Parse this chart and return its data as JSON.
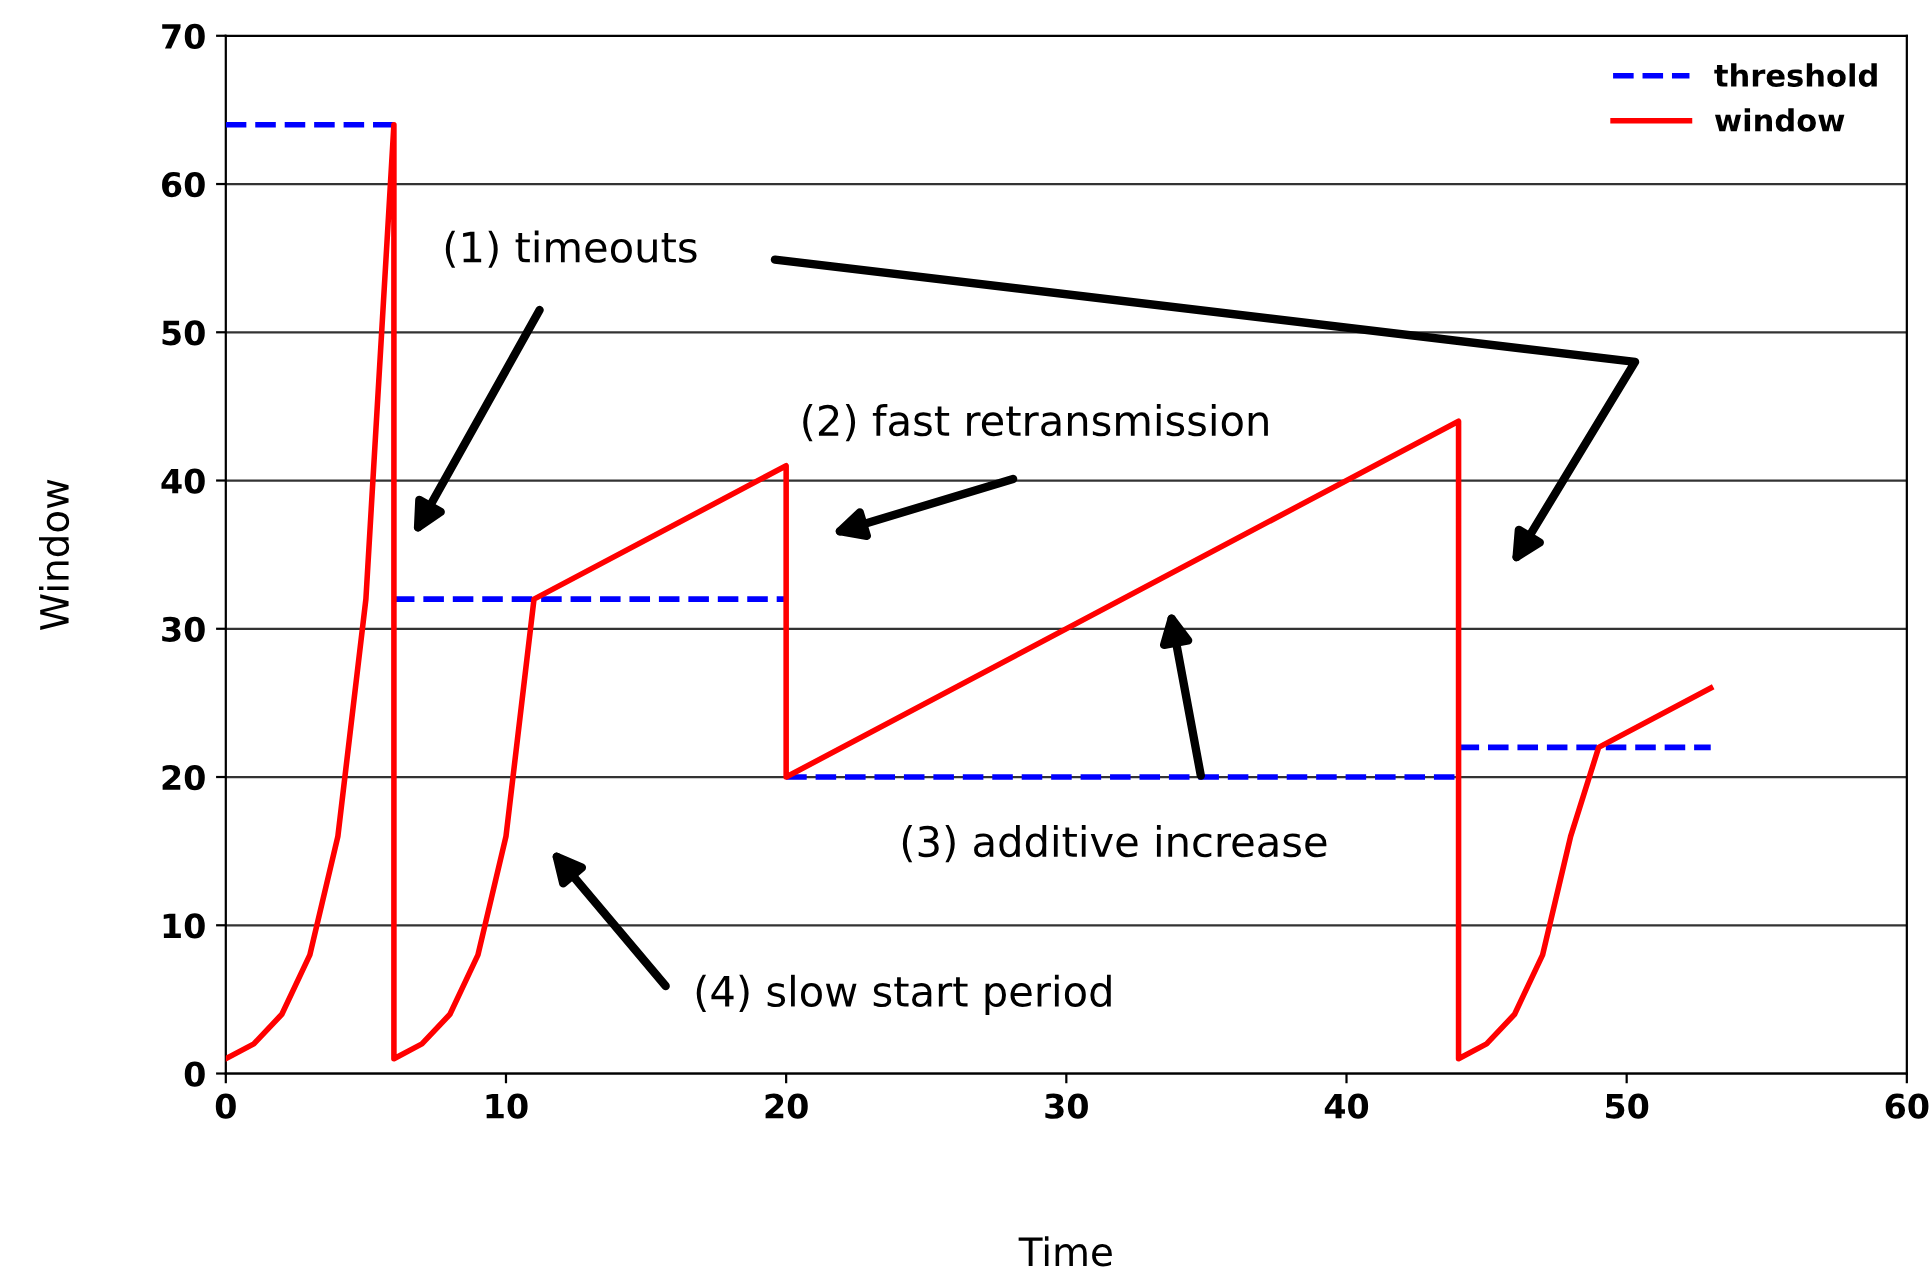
{
  "chart_data": {
    "type": "line",
    "xlabel": "Time",
    "ylabel": "Window",
    "xlim": [
      0,
      60
    ],
    "xticks": [
      0,
      10,
      20,
      30,
      40,
      50,
      60
    ],
    "ylim": [
      0,
      70
    ],
    "yticks": [
      0,
      10,
      20,
      30,
      40,
      50,
      60,
      70
    ],
    "grid": "y",
    "legend": "top right",
    "marker": "none",
    "series": [
      {
        "name": "threshold",
        "color": "#0000ff",
        "line_style": "dashed",
        "x": [
          0,
          6,
          null,
          6,
          20,
          null,
          20,
          44,
          null,
          44,
          53
        ],
        "values": [
          64,
          64,
          null,
          32,
          32,
          null,
          20,
          20,
          null,
          22,
          22
        ]
      },
      {
        "name": "window",
        "color": "#ff0000",
        "line_style": "solid",
        "x": [
          0,
          1,
          2,
          3,
          4,
          5,
          6,
          6,
          7,
          8,
          9,
          10,
          11,
          20,
          20,
          44,
          44,
          45,
          46,
          47,
          48,
          49,
          53
        ],
        "values": [
          1,
          2,
          4,
          8,
          16,
          32,
          64,
          1,
          2,
          4,
          8,
          16,
          32,
          41,
          20,
          44,
          1,
          2,
          4,
          8,
          16,
          22,
          26
        ]
      }
    ],
    "annotations": [
      "(1) timeouts",
      "(2) fast retransmission",
      "(3) additive increase",
      "(4) slow start period"
    ]
  }
}
